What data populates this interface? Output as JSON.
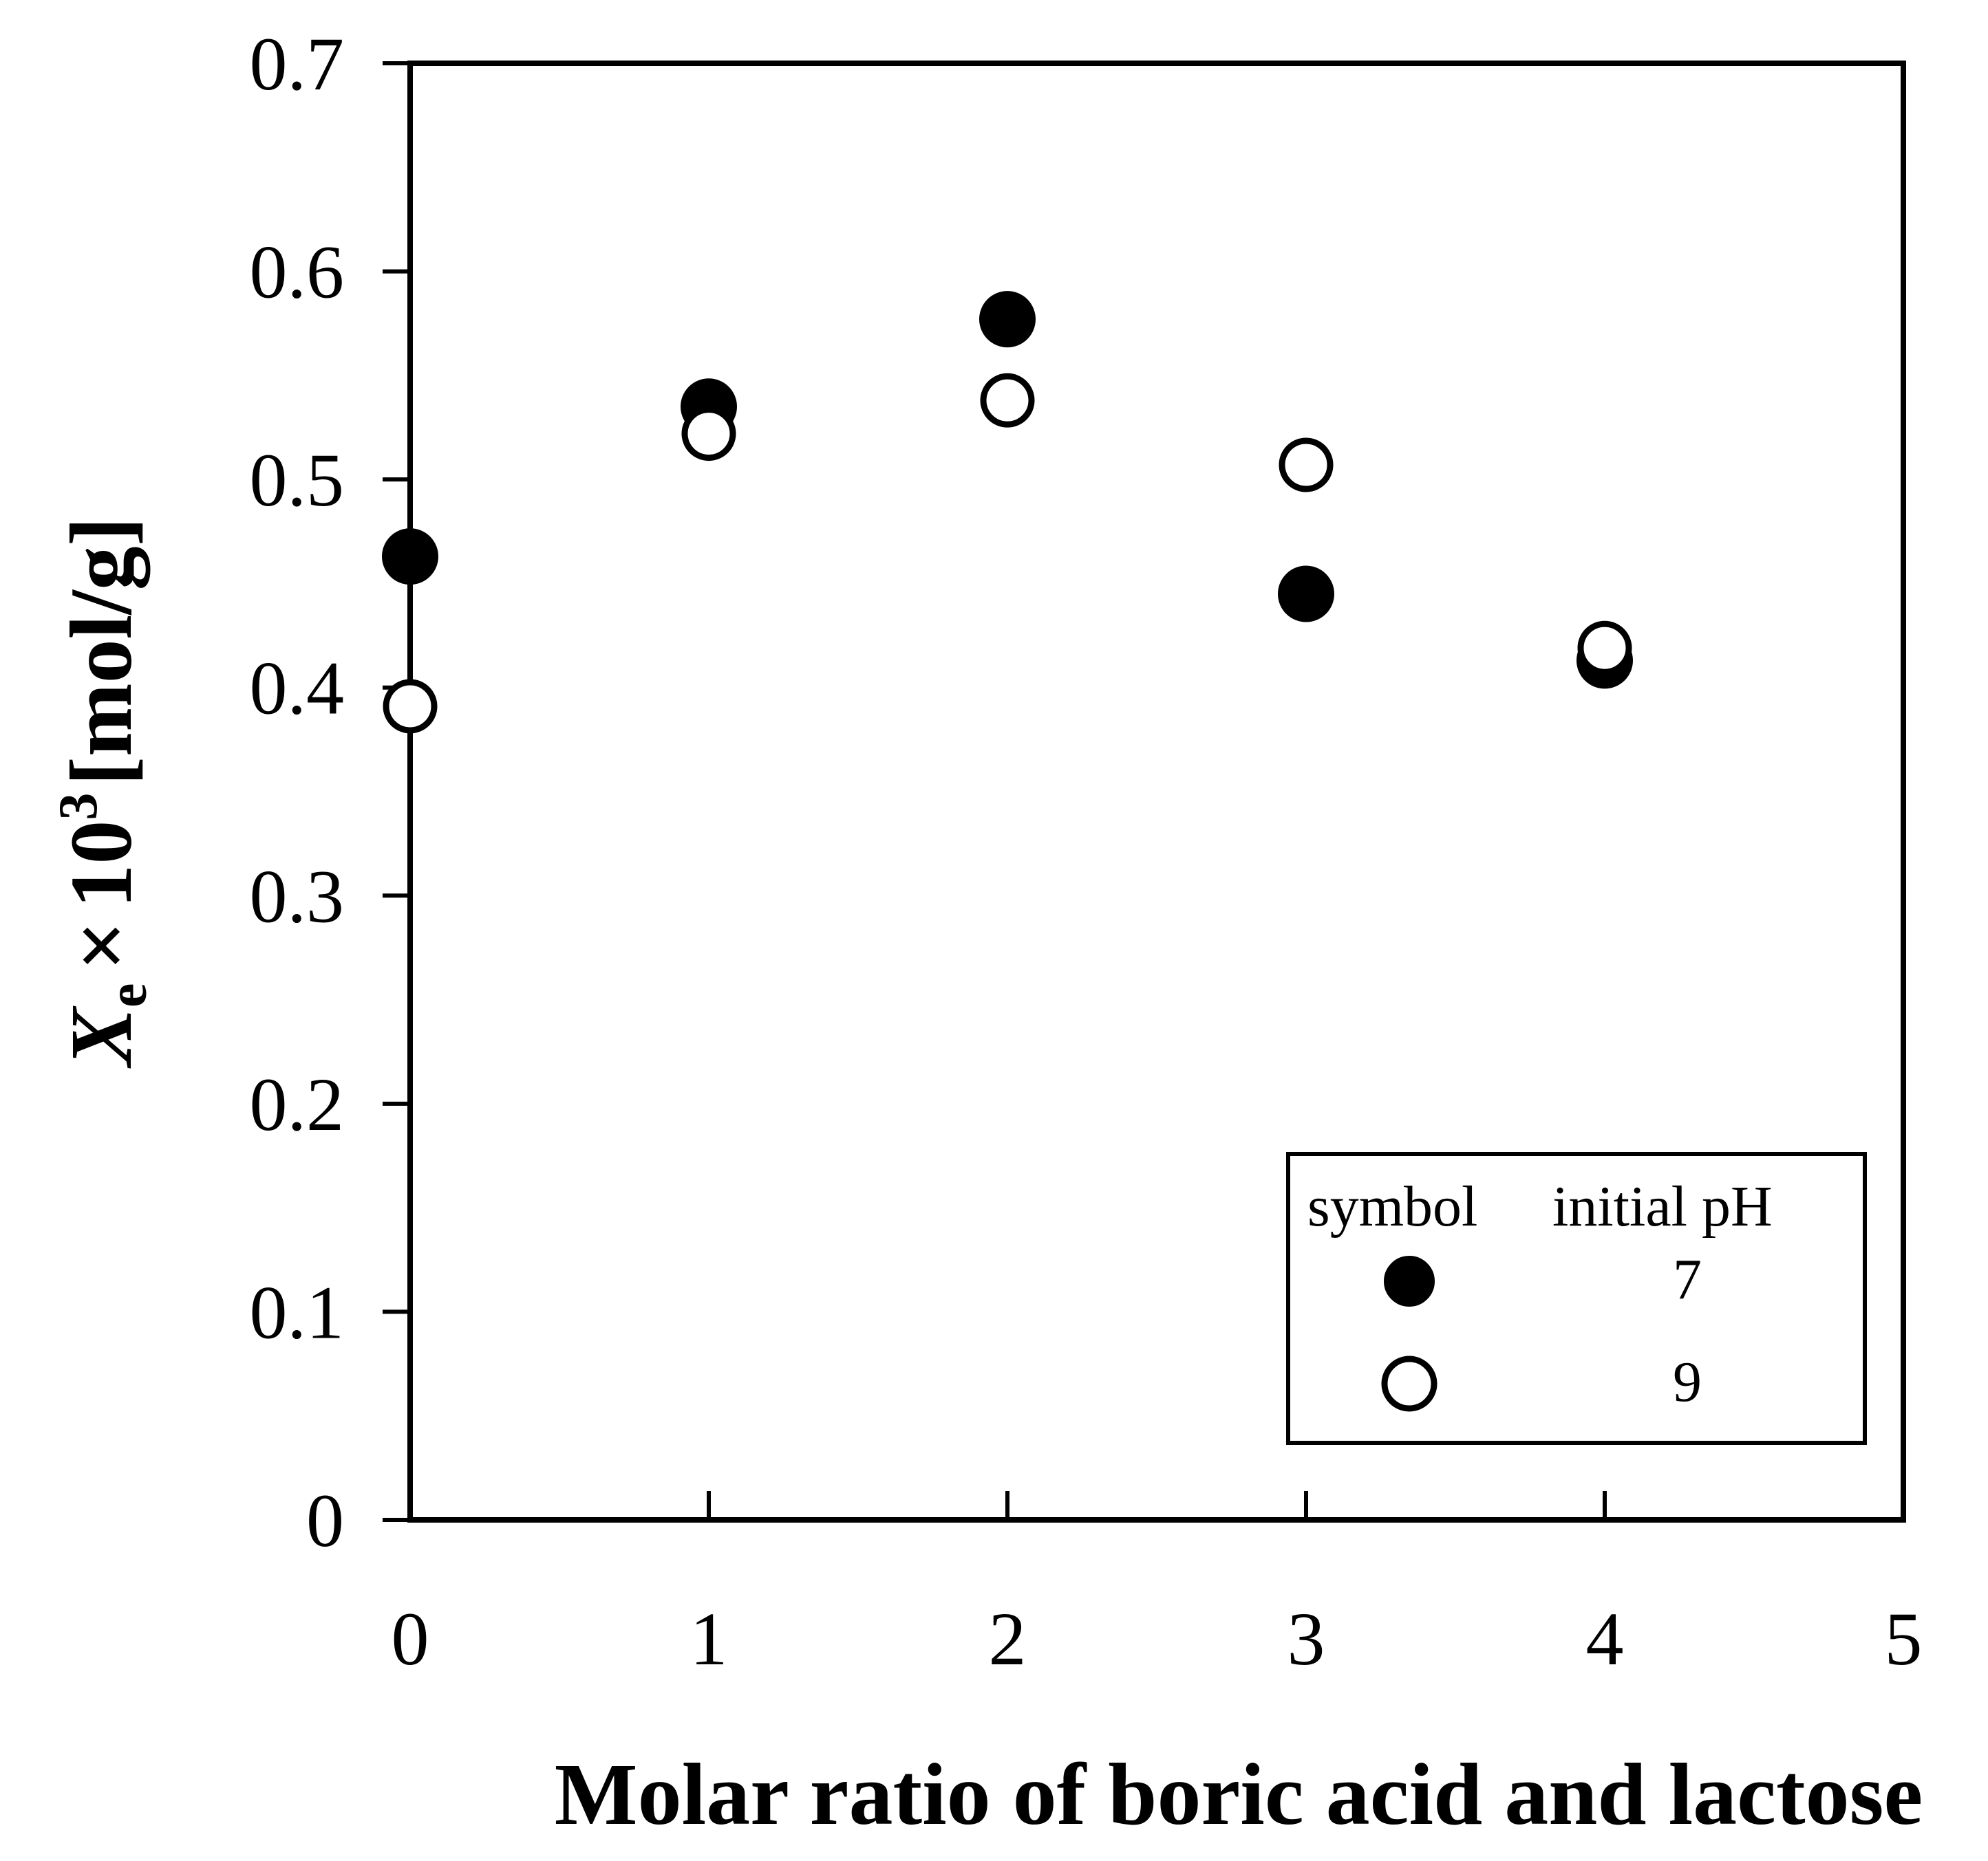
{
  "chart_data": {
    "type": "scatter",
    "title": "",
    "xlabel": "Molar ratio of boric acid and lactose",
    "ylabel": {
      "symbol": "X",
      "subscript": "e",
      "times": "×",
      "base": "10",
      "exponent": "3",
      "unit": "[mol/g]"
    },
    "xlim": [
      0,
      5
    ],
    "ylim": [
      0,
      0.7
    ],
    "x_ticks": [
      0,
      1,
      2,
      3,
      4,
      5
    ],
    "x_tick_labels": [
      "0",
      "1",
      "2",
      "3",
      "4",
      "5"
    ],
    "y_ticks": [
      0,
      0.1,
      0.2,
      0.3,
      0.4,
      0.5,
      0.6,
      0.7
    ],
    "y_tick_labels": [
      "0",
      "0.1",
      "0.2",
      "0.3",
      "0.4",
      "0.5",
      "0.6",
      "0.7"
    ],
    "grid": false,
    "legend": {
      "placement": "bottom-right",
      "header_symbol": "symbol",
      "header_value": "initial pH"
    },
    "series": [
      {
        "name": "7",
        "marker": "filled-circle",
        "color": "#000000",
        "x": [
          0,
          1,
          2,
          3,
          4
        ],
        "y": [
          0.463,
          0.535,
          0.577,
          0.445,
          0.413
        ]
      },
      {
        "name": "9",
        "marker": "open-circle",
        "color": "#000000",
        "x": [
          0,
          1,
          2,
          3,
          4
        ],
        "y": [
          0.391,
          0.522,
          0.538,
          0.507,
          0.419
        ]
      }
    ]
  }
}
